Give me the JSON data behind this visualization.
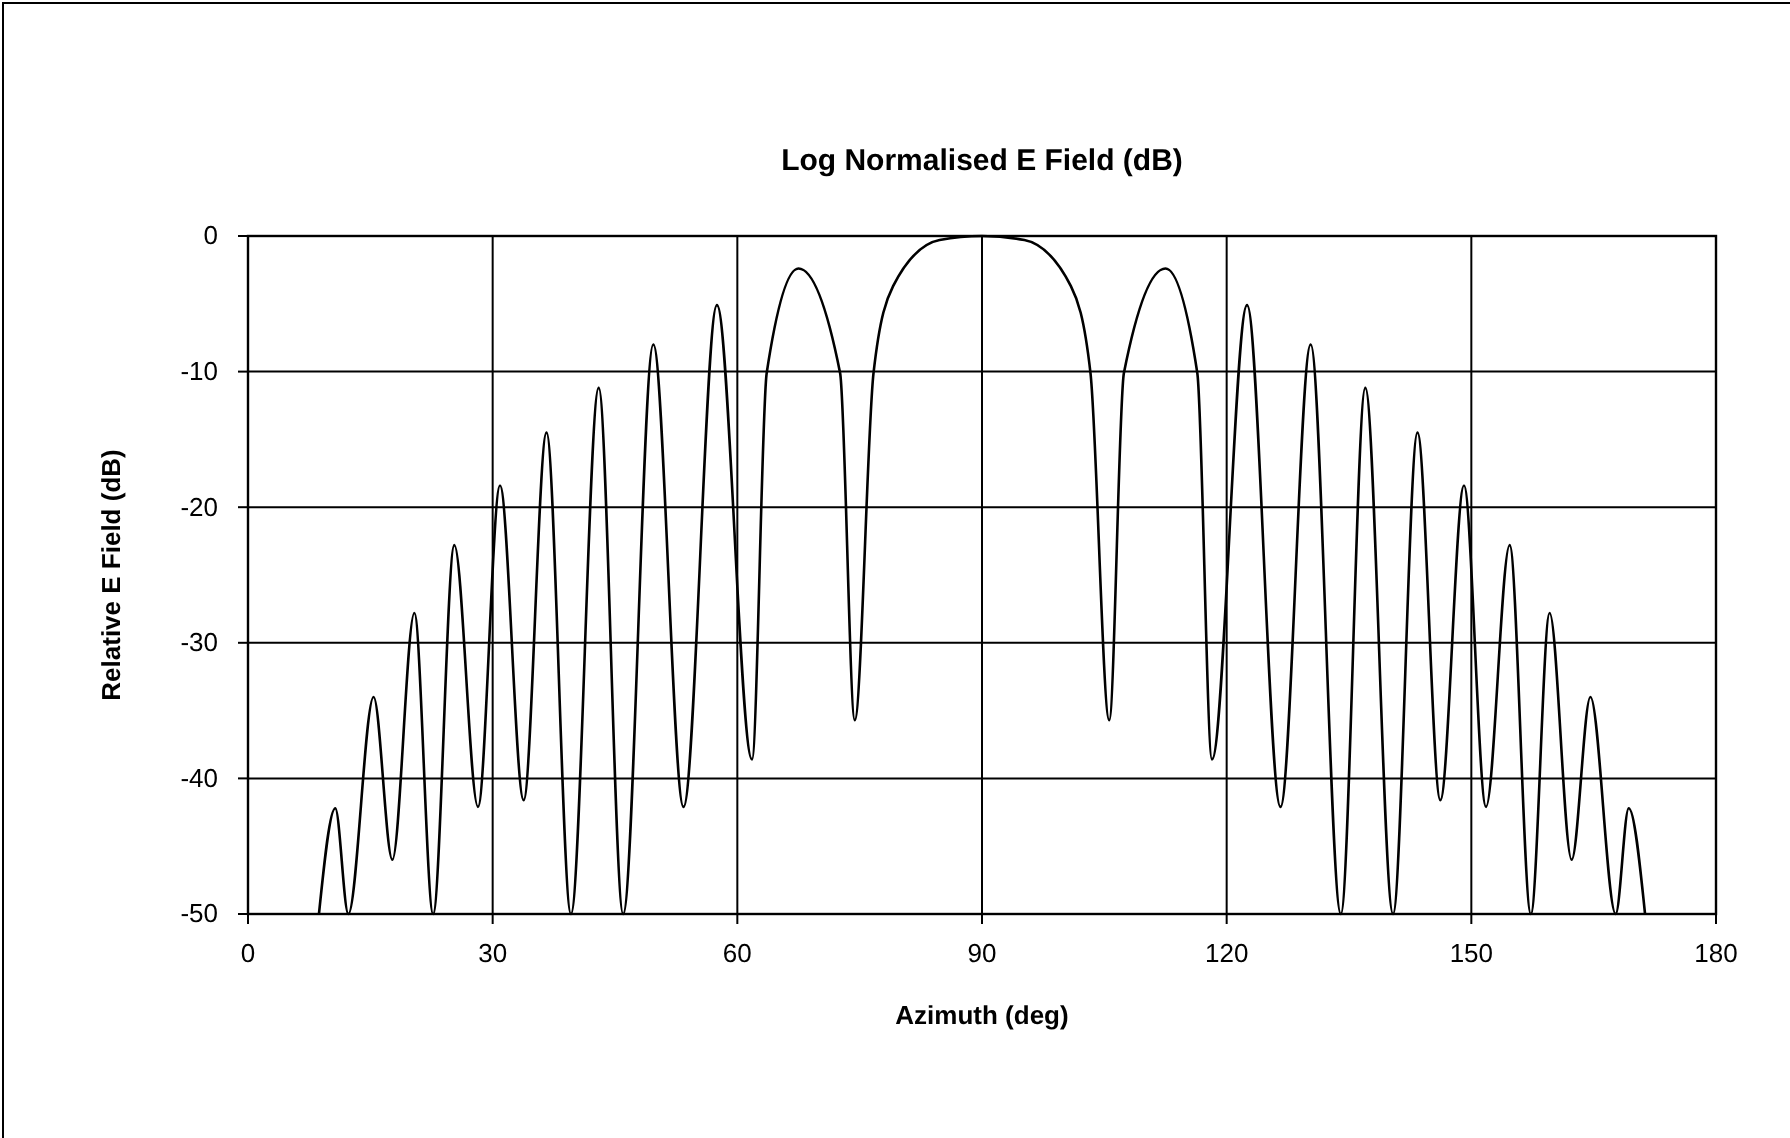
{
  "chart_data": {
    "type": "line",
    "title": "Log Normalised E Field (dB)",
    "xlabel": "Azimuth (deg)",
    "ylabel": "Relative E Field (dB)",
    "xlim": [
      0,
      180
    ],
    "xticks": [
      0,
      30,
      60,
      90,
      120,
      150,
      180
    ],
    "ylim": [
      -50,
      0
    ],
    "yticks": [
      -50,
      -40,
      -30,
      -20,
      -10,
      0
    ],
    "grid": true,
    "marker": "none",
    "line_style": "solid",
    "series": [
      {
        "color": "#000000",
        "x": [
          8.7,
          10.7,
          12.3,
          15.4,
          17.7,
          20.4,
          22.7,
          25.3,
          28.2,
          30.9,
          33.8,
          36.6,
          39.6,
          43.0,
          46.0,
          49.7,
          53.4,
          57.5,
          61.8,
          63.6,
          67.5,
          72.6,
          74.4,
          76.7,
          79.1,
          84.8,
          90,
          95.2,
          100.9,
          103.3,
          105.6,
          107.4,
          112.5,
          116.4,
          118.2,
          122.5,
          126.6,
          130.3,
          134,
          137,
          140.4,
          143.4,
          146.2,
          149.1,
          151.8,
          154.7,
          157.3,
          159.6,
          162.3,
          164.6,
          167.7,
          169.3,
          171.3
        ],
        "values": [
          -50,
          -42.2,
          -50,
          -34.0,
          -46,
          -27.8,
          -50,
          -22.8,
          -42.1,
          -18.4,
          -41.6,
          -14.5,
          -50,
          -11.2,
          -50,
          -8.0,
          -42.1,
          -5.1,
          -38.6,
          -10.1,
          -2.4,
          -10.1,
          -35.7,
          -10.1,
          -3.7,
          -0.3,
          0,
          -0.3,
          -3.7,
          -10.1,
          -35.7,
          -10.1,
          -2.4,
          -10.1,
          -38.6,
          -5.1,
          -42.1,
          -8.0,
          -50,
          -11.2,
          -50,
          -14.5,
          -41.6,
          -18.4,
          -42.1,
          -22.8,
          -50,
          -27.8,
          -46,
          -34.0,
          -50,
          -42.2,
          -50
        ]
      }
    ]
  }
}
